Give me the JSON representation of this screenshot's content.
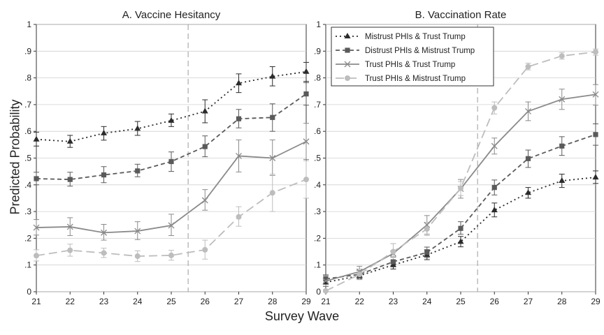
{
  "figure": {
    "ylabel": "Predicted Probability",
    "xlabel": "Survey Wave"
  },
  "chart_data": [
    {
      "type": "line",
      "title": "A. Vaccine Hesitancy",
      "xlabel": "Survey Wave",
      "ylabel": "Predicted Probability",
      "x": [
        21,
        22,
        23,
        24,
        25,
        26,
        27,
        28,
        29
      ],
      "xlim": [
        21,
        29
      ],
      "ylim": [
        0,
        1
      ],
      "y_ticks": [
        0,
        0.1,
        0.2,
        0.3,
        0.4,
        0.5,
        0.6,
        0.7,
        0.8,
        0.9,
        1
      ],
      "y_tick_labels": [
        "0",
        ".1",
        ".2",
        ".3",
        ".4",
        ".5",
        ".6",
        ".7",
        ".8",
        ".9",
        "1"
      ],
      "x_tick_labels": [
        "21",
        "22",
        "23",
        "24",
        "25",
        "26",
        "27",
        "28",
        "29"
      ],
      "reference_line_x": 25.5,
      "grid": true,
      "legend": false,
      "series": [
        {
          "name": "Mistrust PHIs & Trust Trump",
          "marker": "triangle",
          "dash": "dot",
          "color": "#2b2b2b",
          "values": [
            0.57,
            0.562,
            0.593,
            0.61,
            0.64,
            0.675,
            0.78,
            0.805,
            0.823
          ],
          "lower": [
            0.545,
            0.54,
            0.567,
            0.585,
            0.618,
            0.632,
            0.745,
            0.77,
            0.787
          ],
          "upper": [
            0.597,
            0.585,
            0.618,
            0.637,
            0.665,
            0.718,
            0.815,
            0.842,
            0.858
          ]
        },
        {
          "name": "Distrust PHIs & Mistrust Trump",
          "marker": "square",
          "dash": "dash",
          "color": "#5a5a5a",
          "values": [
            0.423,
            0.42,
            0.437,
            0.452,
            0.487,
            0.543,
            0.647,
            0.652,
            0.74
          ],
          "lower": [
            0.4,
            0.395,
            0.408,
            0.43,
            0.45,
            0.505,
            0.613,
            0.6,
            0.698
          ],
          "upper": [
            0.447,
            0.447,
            0.468,
            0.477,
            0.523,
            0.583,
            0.682,
            0.703,
            0.782
          ]
        },
        {
          "name": "Trust PHIs & Trust Trump",
          "marker": "x",
          "dash": "solid",
          "color": "#8a8a8a",
          "values": [
            0.24,
            0.243,
            0.221,
            0.227,
            0.248,
            0.342,
            0.508,
            0.5,
            0.562
          ],
          "lower": [
            0.212,
            0.21,
            0.193,
            0.195,
            0.21,
            0.305,
            0.448,
            0.435,
            0.495
          ],
          "upper": [
            0.27,
            0.277,
            0.252,
            0.262,
            0.29,
            0.382,
            0.568,
            0.568,
            0.63
          ]
        },
        {
          "name": "Trust PHIs & Mistrust Trump",
          "marker": "circle",
          "dash": "longdash",
          "color": "#bdbdbd",
          "values": [
            0.135,
            0.155,
            0.145,
            0.133,
            0.136,
            0.157,
            0.28,
            0.37,
            0.42
          ],
          "lower": [
            0.115,
            0.133,
            0.128,
            0.113,
            0.118,
            0.122,
            0.245,
            0.3,
            0.35
          ],
          "upper": [
            0.157,
            0.178,
            0.163,
            0.153,
            0.155,
            0.193,
            0.318,
            0.44,
            0.49
          ]
        }
      ]
    },
    {
      "type": "line",
      "title": "B. Vaccination Rate",
      "xlabel": "Survey Wave",
      "ylabel": "Predicted Probability",
      "x": [
        21,
        22,
        23,
        24,
        25,
        26,
        27,
        28,
        29
      ],
      "xlim": [
        21,
        29
      ],
      "ylim": [
        0,
        1
      ],
      "y_ticks": [
        0,
        0.1,
        0.2,
        0.3,
        0.4,
        0.5,
        0.6,
        0.7,
        0.8,
        0.9,
        1
      ],
      "y_tick_labels": [
        "0",
        ".1",
        ".2",
        ".3",
        ".4",
        ".5",
        ".6",
        ".7",
        ".8",
        ".9",
        "1"
      ],
      "x_tick_labels": [
        "21",
        "22",
        "23",
        "24",
        "25",
        "26",
        "27",
        "28",
        "29"
      ],
      "reference_line_x": 25.5,
      "grid": true,
      "legend": true,
      "legend_position": "top-left",
      "series": [
        {
          "name": "Mistrust PHIs & Trust Trump",
          "marker": "triangle",
          "dash": "dot",
          "color": "#2b2b2b",
          "values": [
            0.035,
            0.06,
            0.1,
            0.138,
            0.187,
            0.305,
            0.37,
            0.415,
            0.428
          ],
          "lower": [
            0.02,
            0.048,
            0.085,
            0.12,
            0.168,
            0.28,
            0.35,
            0.39,
            0.405
          ],
          "upper": [
            0.05,
            0.073,
            0.115,
            0.157,
            0.207,
            0.332,
            0.39,
            0.44,
            0.452
          ]
        },
        {
          "name": "Distrust PHIs & Mistrust Trump",
          "marker": "square",
          "dash": "dash",
          "color": "#5a5a5a",
          "values": [
            0.048,
            0.065,
            0.112,
            0.147,
            0.237,
            0.39,
            0.498,
            0.545,
            0.588
          ],
          "lower": [
            0.033,
            0.05,
            0.095,
            0.128,
            0.215,
            0.362,
            0.465,
            0.51,
            0.548
          ],
          "upper": [
            0.063,
            0.08,
            0.13,
            0.167,
            0.262,
            0.418,
            0.53,
            0.58,
            0.628
          ]
        },
        {
          "name": "Trust PHIs & Trust Trump",
          "marker": "x",
          "dash": "solid",
          "color": "#8a8a8a",
          "values": [
            0.04,
            0.075,
            0.143,
            0.25,
            0.385,
            0.545,
            0.675,
            0.72,
            0.738
          ],
          "lower": [
            0.02,
            0.055,
            0.108,
            0.215,
            0.35,
            0.515,
            0.64,
            0.682,
            0.698
          ],
          "upper": [
            0.06,
            0.095,
            0.18,
            0.285,
            0.42,
            0.575,
            0.71,
            0.758,
            0.775
          ]
        },
        {
          "name": "Trust PHIs & Mistrust Trump",
          "marker": "circle",
          "dash": "longdash",
          "color": "#bdbdbd",
          "values": [
            0.003,
            0.065,
            0.15,
            0.235,
            0.387,
            0.688,
            0.842,
            0.882,
            0.897
          ],
          "lower": [
            0.0,
            0.045,
            0.12,
            0.21,
            0.36,
            0.665,
            0.83,
            0.87,
            0.885
          ],
          "upper": [
            0.008,
            0.085,
            0.18,
            0.26,
            0.412,
            0.71,
            0.855,
            0.895,
            0.908
          ]
        }
      ]
    }
  ]
}
